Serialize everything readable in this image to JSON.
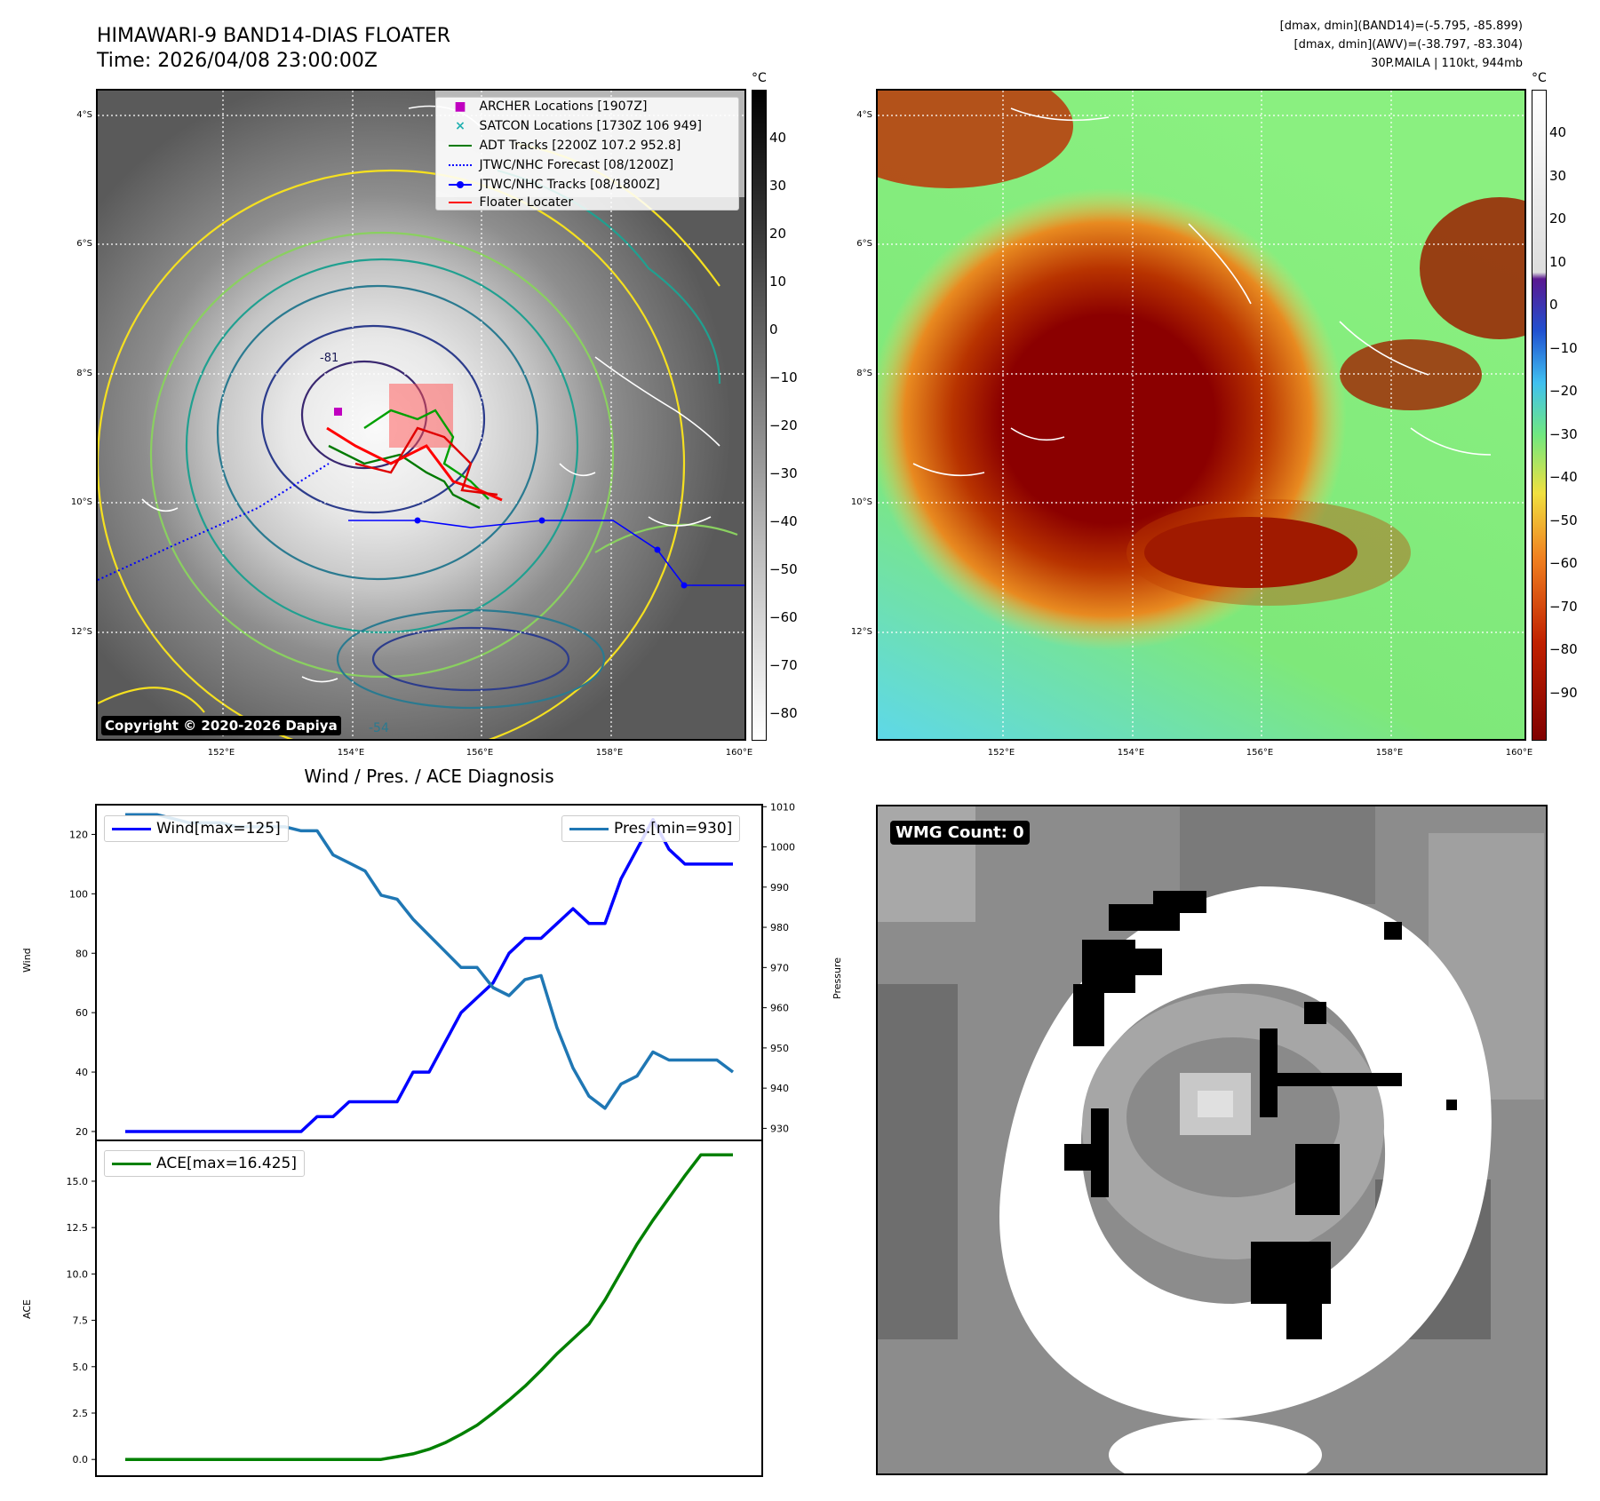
{
  "header": {
    "title_line1": "HIMAWARI-9 BAND14-DIAS FLOATER",
    "title_line2": "Time: 2026/04/08 23:00:00Z",
    "info_line1": "[dmax, dmin](BAND14)=(-5.795, -85.899)",
    "info_line2": "[dmax, dmin](AWV)=(-38.797, -83.304)",
    "info_line3": "30P.MAILA | 110kt, 944mb"
  },
  "map_axes": {
    "lat_labels": [
      "4°S",
      "6°S",
      "8°S",
      "10°S",
      "12°S"
    ],
    "lon_labels": [
      "152°E",
      "154°E",
      "156°E",
      "158°E",
      "160°E"
    ]
  },
  "ir_panel": {
    "legend": [
      {
        "label": "ARCHER Locations [1907Z]",
        "color": "#c000c0",
        "kind": "square"
      },
      {
        "label": "SATCON Locations [1730Z 106 949]",
        "color": "#20b0b0",
        "kind": "x"
      },
      {
        "label": "ADT Tracks [2200Z 107.2 952.8]",
        "color": "#007a00",
        "kind": "line"
      },
      {
        "label": "JTWC/NHC Forecast [08/1200Z]",
        "color": "#0000ff",
        "kind": "dotted"
      },
      {
        "label": "JTWC/NHC Tracks [08/1800Z]",
        "color": "#0000ff",
        "kind": "line-dot"
      },
      {
        "label": "Floater Locater",
        "color": "#ff0000",
        "kind": "line"
      }
    ],
    "colorbar_unit": "°C",
    "colorbar_ticks": [
      "40",
      "30",
      "20",
      "10",
      "0",
      "−10",
      "−20",
      "−30",
      "−40",
      "−50",
      "−60",
      "−70",
      "−80"
    ],
    "copyright": "Copyright © 2020-2026 Dapiya",
    "contour_labels": [
      "-81",
      "-54"
    ]
  },
  "awv_panel": {
    "colorbar_unit": "°C",
    "colorbar_ticks": [
      "40",
      "30",
      "20",
      "10",
      "0",
      "−10",
      "−20",
      "−30",
      "−40",
      "−50",
      "−60",
      "−70",
      "−80",
      "−90"
    ]
  },
  "wmg_panel": {
    "label": "WMG Count: 0"
  },
  "chart_data": [
    {
      "type": "line",
      "title": "Wind / Pres. / ACE Diagnosis",
      "ylabel": "Wind",
      "ylabel_right": "Pressure",
      "ylim": [
        17,
        130
      ],
      "ylim_right": [
        927,
        1010.5
      ],
      "yticks": [
        "20",
        "40",
        "60",
        "80",
        "100",
        "120"
      ],
      "yticks_right": [
        "930",
        "940",
        "950",
        "960",
        "970",
        "980",
        "990",
        "1000",
        "1010"
      ],
      "x": [
        0,
        1,
        2,
        3,
        4,
        5,
        6,
        7,
        8,
        9,
        10,
        11,
        12,
        13,
        14,
        15,
        16,
        17,
        18,
        19,
        20,
        21,
        22,
        23,
        24,
        25,
        26,
        27,
        28,
        29,
        30,
        31,
        32,
        33,
        34,
        35,
        36,
        37,
        38
      ],
      "series": [
        {
          "name": "Wind[max=125]",
          "color": "#0000ff",
          "axis": "left",
          "values": [
            20,
            20,
            20,
            20,
            20,
            20,
            20,
            20,
            20,
            20,
            20,
            20,
            25,
            25,
            30,
            30,
            30,
            30,
            40,
            40,
            50,
            60,
            65,
            70,
            80,
            85,
            85,
            90,
            95,
            90,
            90,
            105,
            115,
            125,
            115,
            110,
            110,
            110,
            110
          ]
        },
        {
          "name": "Pres.[min=930]",
          "color": "#1f77b4",
          "axis": "right",
          "values": [
            1008,
            1008,
            1008,
            1007,
            1006,
            1006,
            1006,
            1005,
            1005,
            1005,
            1005,
            1004,
            1004,
            998,
            996,
            994,
            988,
            987,
            982,
            978,
            974,
            970,
            970,
            965,
            963,
            967,
            968,
            955,
            945,
            938,
            935,
            941,
            943,
            949,
            947,
            947,
            947,
            947,
            944
          ]
        }
      ]
    },
    {
      "type": "line",
      "ylabel": "ACE",
      "ylim": [
        -0.9,
        17.2
      ],
      "yticks": [
        "0.0",
        "2.5",
        "5.0",
        "7.5",
        "10.0",
        "12.5",
        "15.0"
      ],
      "x": [
        0,
        1,
        2,
        3,
        4,
        5,
        6,
        7,
        8,
        9,
        10,
        11,
        12,
        13,
        14,
        15,
        16,
        17,
        18,
        19,
        20,
        21,
        22,
        23,
        24,
        25,
        26,
        27,
        28,
        29,
        30,
        31,
        32,
        33,
        34,
        35,
        36,
        37,
        38
      ],
      "series": [
        {
          "name": "ACE[max=16.425]",
          "color": "#008000",
          "values": [
            0,
            0,
            0,
            0,
            0,
            0,
            0,
            0,
            0,
            0,
            0,
            0,
            0,
            0,
            0,
            0,
            0,
            0.15,
            0.3,
            0.55,
            0.9,
            1.35,
            1.85,
            2.5,
            3.2,
            3.95,
            4.8,
            5.7,
            6.5,
            7.3,
            8.6,
            10.1,
            11.6,
            12.9,
            14.1,
            15.3,
            16.425,
            16.425,
            16.425
          ]
        }
      ]
    }
  ]
}
